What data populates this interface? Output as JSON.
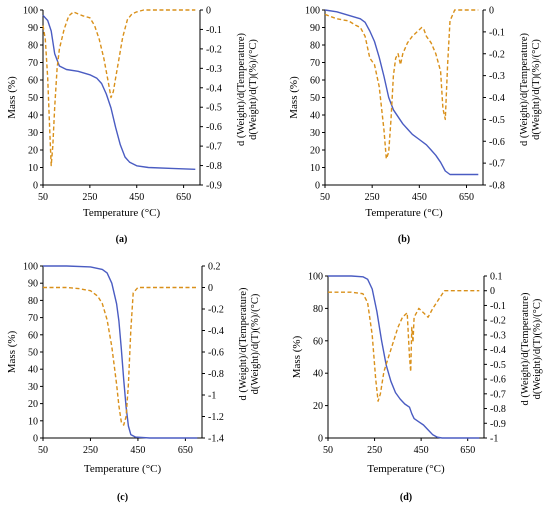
{
  "colors": {
    "mass": "#4a5cc2",
    "derivative": "#d9901a",
    "axis": "#000000"
  },
  "chart_data": [
    {
      "panel_label": "(a)",
      "type": "line",
      "xlabel": "Temperature (°C)",
      "ylabel_left": "Mass (%)",
      "ylabel_right": [
        "d (Weight)/d(Temperature)",
        "d(Weight)/d(T)(%)/(°C)"
      ],
      "xlim": [
        50,
        720
      ],
      "xticks": [
        50,
        250,
        450,
        650
      ],
      "ylim_left": [
        0,
        100
      ],
      "yticks_left": [
        0,
        10,
        20,
        30,
        40,
        50,
        60,
        70,
        80,
        90,
        100
      ],
      "ylim_right": [
        -0.9,
        0
      ],
      "yticks_right": [
        0,
        -0.1,
        -0.2,
        -0.3,
        -0.4,
        -0.5,
        -0.6,
        -0.7,
        -0.8,
        -0.9
      ],
      "yticklabels_right": [
        "0",
        "-0.1",
        "-0.2",
        "-0.3",
        "-0.4",
        "-0.5",
        "-0.6",
        "-0.7",
        "-0.8",
        "-0.9"
      ],
      "series": [
        {
          "axis": "left",
          "style": "solid",
          "color": "#4a5cc2",
          "x": [
            50,
            70,
            85,
            100,
            120,
            150,
            200,
            250,
            280,
            300,
            320,
            340,
            360,
            380,
            400,
            420,
            450,
            500,
            600,
            700
          ],
          "y": [
            97,
            94,
            88,
            75,
            68,
            66,
            65,
            63,
            61,
            58,
            52,
            44,
            33,
            23,
            16,
            13,
            11,
            10,
            9.5,
            9
          ]
        },
        {
          "axis": "right",
          "style": "dashed",
          "color": "#d9901a",
          "x": [
            50,
            60,
            70,
            78,
            85,
            92,
            100,
            110,
            120,
            140,
            160,
            180,
            200,
            220,
            250,
            270,
            290,
            310,
            330,
            340,
            350,
            360,
            370,
            390,
            410,
            430,
            450,
            480,
            550,
            650,
            700
          ],
          "y": [
            -0.08,
            -0.15,
            -0.35,
            -0.6,
            -0.8,
            -0.7,
            -0.5,
            -0.3,
            -0.2,
            -0.1,
            -0.03,
            -0.01,
            -0.02,
            -0.03,
            -0.04,
            -0.08,
            -0.15,
            -0.25,
            -0.38,
            -0.45,
            -0.42,
            -0.35,
            -0.28,
            -0.14,
            -0.05,
            -0.02,
            -0.01,
            0,
            0,
            0,
            0
          ]
        }
      ]
    },
    {
      "panel_label": "(b)",
      "type": "line",
      "xlabel": "Temperature (°C)",
      "ylabel_left": "Mass (%)",
      "ylabel_right": [
        "d (Weight)/d(Temperature)",
        "d(Weight)/d(T)(%)/(°C)"
      ],
      "xlim": [
        50,
        720
      ],
      "xticks": [
        50,
        250,
        450,
        650
      ],
      "ylim_left": [
        0,
        100
      ],
      "yticks_left": [
        0,
        10,
        20,
        30,
        40,
        50,
        60,
        70,
        80,
        90,
        100
      ],
      "ylim_right": [
        -0.8,
        0
      ],
      "yticks_right": [
        0,
        -0.1,
        -0.2,
        -0.3,
        -0.4,
        -0.5,
        -0.6,
        -0.7,
        -0.8
      ],
      "yticklabels_right": [
        "0",
        "-0.1",
        "-0.2",
        "-0.3",
        "-0.4",
        "-0.5",
        "-0.6",
        "-0.7",
        "-0.8"
      ],
      "series": [
        {
          "axis": "left",
          "style": "solid",
          "color": "#4a5cc2",
          "x": [
            50,
            100,
            150,
            200,
            220,
            240,
            260,
            280,
            300,
            320,
            340,
            360,
            380,
            400,
            420,
            450,
            480,
            500,
            520,
            540,
            560,
            580,
            600,
            650,
            700
          ],
          "y": [
            100,
            99,
            97,
            95,
            93,
            88,
            82,
            73,
            62,
            50,
            43,
            39,
            35,
            32,
            29,
            26,
            23,
            20,
            17,
            13,
            8,
            6,
            6,
            6,
            6
          ]
        },
        {
          "axis": "right",
          "style": "dashed",
          "color": "#d9901a",
          "x": [
            50,
            100,
            150,
            180,
            200,
            220,
            240,
            260,
            280,
            300,
            310,
            320,
            330,
            340,
            350,
            360,
            370,
            380,
            400,
            420,
            440,
            460,
            470,
            480,
            500,
            520,
            540,
            550,
            560,
            570,
            580,
            600,
            650,
            700
          ],
          "y": [
            -0.02,
            -0.04,
            -0.05,
            -0.07,
            -0.08,
            -0.12,
            -0.22,
            -0.25,
            -0.35,
            -0.55,
            -0.68,
            -0.65,
            -0.5,
            -0.3,
            -0.22,
            -0.2,
            -0.25,
            -0.2,
            -0.15,
            -0.12,
            -0.1,
            -0.08,
            -0.09,
            -0.12,
            -0.15,
            -0.2,
            -0.28,
            -0.45,
            -0.5,
            -0.25,
            -0.05,
            0,
            0,
            0
          ]
        }
      ]
    },
    {
      "panel_label": "(c)",
      "type": "line",
      "xlabel": "Temperature (°C)",
      "ylabel_left": "Mass (%)",
      "ylabel_right": [
        "d (Weight)/d(Temperature)",
        "d(Weight)/d(T)(%)/(°C)"
      ],
      "xlim": [
        50,
        720
      ],
      "xticks": [
        50,
        250,
        450,
        650
      ],
      "ylim_left": [
        0,
        100
      ],
      "yticks_left": [
        0,
        10,
        20,
        30,
        40,
        50,
        60,
        70,
        80,
        90,
        100
      ],
      "ylim_right": [
        -1.4,
        0.2
      ],
      "yticks_right": [
        0.2,
        0,
        -0.2,
        -0.4,
        -0.6,
        -0.8,
        -1,
        -1.2,
        -1.4
      ],
      "yticklabels_right": [
        "0.2",
        "0",
        "-0.2",
        "-0.4",
        "-0.6",
        "-0.8",
        "-1",
        "-1.2",
        "-1.4"
      ],
      "series": [
        {
          "axis": "left",
          "style": "solid",
          "color": "#4a5cc2",
          "x": [
            50,
            150,
            250,
            300,
            320,
            340,
            360,
            370,
            380,
            390,
            400,
            410,
            420,
            440,
            500,
            600,
            700
          ],
          "y": [
            100,
            100,
            99.5,
            98,
            96,
            90,
            78,
            68,
            52,
            34,
            18,
            7,
            2,
            0.5,
            0,
            0,
            0
          ]
        },
        {
          "axis": "right",
          "style": "dashed",
          "color": "#d9901a",
          "x": [
            50,
            150,
            200,
            250,
            280,
            300,
            320,
            340,
            360,
            370,
            380,
            390,
            400,
            410,
            420,
            430,
            450,
            500,
            600,
            700
          ],
          "y": [
            0,
            0,
            -0.01,
            -0.03,
            -0.08,
            -0.15,
            -0.3,
            -0.55,
            -0.9,
            -1.1,
            -1.25,
            -1.28,
            -1.2,
            -0.9,
            -0.4,
            -0.05,
            0,
            0,
            0,
            0
          ]
        }
      ]
    },
    {
      "panel_label": "(d)",
      "type": "line",
      "xlabel": "Temperature (°C)",
      "ylabel_left": "Mass (%)",
      "ylabel_right": [
        "d (Weight)/d(Temperature)",
        "d(Weight)/d(T)(%)/(°C)"
      ],
      "xlim": [
        50,
        720
      ],
      "xticks": [
        50,
        250,
        450,
        650
      ],
      "ylim_left": [
        0,
        100
      ],
      "yticks_left": [
        0,
        20,
        40,
        60,
        80,
        100
      ],
      "ylim_right": [
        -1,
        0.1
      ],
      "yticks_right": [
        0.1,
        0,
        -0.1,
        -0.2,
        -0.3,
        -0.4,
        -0.5,
        -0.6,
        -0.7,
        -0.8,
        -0.9,
        -1
      ],
      "yticklabels_right": [
        "0.1",
        "0",
        "-0.1",
        "-0.2",
        "-0.3",
        "-0.4",
        "-0.5",
        "-0.6",
        "-0.7",
        "-0.8",
        "-0.9",
        "-1"
      ],
      "series": [
        {
          "axis": "left",
          "style": "solid",
          "color": "#4a5cc2",
          "x": [
            50,
            150,
            200,
            220,
            240,
            260,
            280,
            300,
            320,
            340,
            360,
            380,
            400,
            410,
            420,
            440,
            460,
            480,
            500,
            520,
            540,
            600,
            700
          ],
          "y": [
            100,
            100,
            99.5,
            98,
            92,
            78,
            60,
            45,
            35,
            28,
            24,
            21,
            19,
            15,
            12,
            10,
            8,
            5,
            2,
            0.5,
            0,
            0,
            0
          ]
        },
        {
          "axis": "right",
          "style": "dashed",
          "color": "#d9901a",
          "x": [
            50,
            150,
            200,
            220,
            240,
            255,
            265,
            275,
            290,
            310,
            330,
            350,
            370,
            390,
            400,
            405,
            410,
            415,
            420,
            430,
            440,
            460,
            480,
            500,
            550,
            600,
            650,
            700
          ],
          "y": [
            -0.01,
            -0.01,
            -0.02,
            -0.08,
            -0.3,
            -0.6,
            -0.75,
            -0.7,
            -0.55,
            -0.45,
            -0.35,
            -0.25,
            -0.18,
            -0.15,
            -0.45,
            -0.55,
            -0.25,
            -0.35,
            -0.18,
            -0.15,
            -0.12,
            -0.15,
            -0.18,
            -0.12,
            0,
            0,
            0,
            0
          ]
        }
      ]
    }
  ]
}
